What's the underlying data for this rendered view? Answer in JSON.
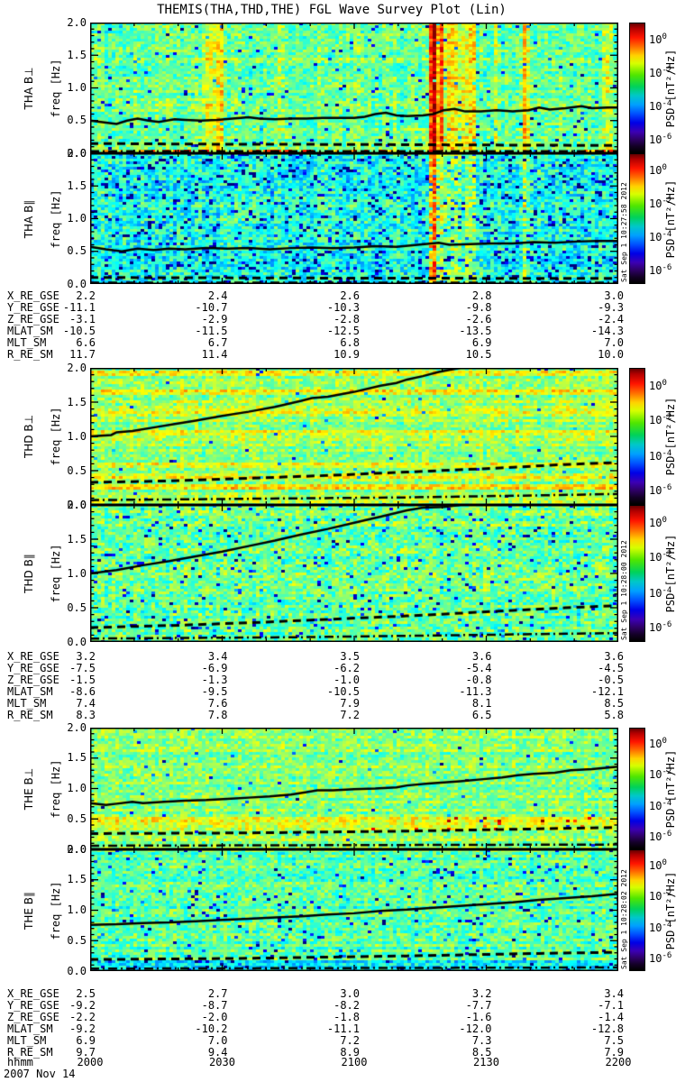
{
  "title": "THEMIS(THA,THD,THE) FGL Wave Survey Plot (Lin)",
  "date_label": "2007 Nov 14",
  "time_axis": {
    "label": "hhmm",
    "ticks": [
      "2000",
      "2030",
      "2100",
      "2130",
      "2200"
    ]
  },
  "colorbar": {
    "label": "PSD [nT²/Hz]",
    "tick_exponents": [
      "0",
      "-2",
      "-4",
      "-6"
    ]
  },
  "chart_data": {
    "type": "heatmap",
    "x_range_hhmm": [
      2000,
      2200
    ],
    "y_range_hz": [
      0.0,
      2.0
    ],
    "ytick_labels": [
      "0.0",
      "0.5",
      "1.0",
      "1.5",
      "2.0"
    ],
    "freq_axis_label": "freq [Hz]",
    "ephemeris_labels": [
      "X_RE_GSE",
      "Y_RE_GSE",
      "Z_RE_GSE",
      "MLAT_SM",
      "MLT_SM",
      "R_RE_SM"
    ],
    "pairs": [
      {
        "probe": "THA",
        "timestamp": "Sat Sep 1 10:27:58 2012",
        "ephemeris": [
          [
            "2.2",
            "2.4",
            "2.6",
            "2.8",
            "3.0"
          ],
          [
            "-11.1",
            "-10.7",
            "-10.3",
            "-9.8",
            "-9.3"
          ],
          [
            "-3.1",
            "-2.9",
            "-2.8",
            "-2.6",
            "-2.4"
          ],
          [
            "-10.5",
            "-11.5",
            "-12.5",
            "-13.5",
            "-14.3"
          ],
          [
            "6.6",
            "6.7",
            "6.8",
            "6.9",
            "7.0"
          ],
          [
            "11.7",
            "11.4",
            "10.9",
            "10.5",
            "10.0"
          ]
        ]
      },
      {
        "probe": "THD",
        "timestamp": "Sat Sep 1 10:28:00 2012",
        "ephemeris": [
          [
            "3.2",
            "3.4",
            "3.5",
            "3.6",
            "3.6"
          ],
          [
            "-7.5",
            "-6.9",
            "-6.2",
            "-5.4",
            "-4.5"
          ],
          [
            "-1.5",
            "-1.3",
            "-1.0",
            "-0.8",
            "-0.5"
          ],
          [
            "-8.6",
            "-9.5",
            "-10.5",
            "-11.3",
            "-12.1"
          ],
          [
            "7.4",
            "7.6",
            "7.9",
            "8.1",
            "8.5"
          ],
          [
            "8.3",
            "7.8",
            "7.2",
            "6.5",
            "5.8"
          ]
        ]
      },
      {
        "probe": "THE",
        "timestamp": "Sat Sep 1 10:28:02 2012",
        "ephemeris": [
          [
            "2.5",
            "2.7",
            "3.0",
            "3.2",
            "3.4"
          ],
          [
            "-9.2",
            "-8.7",
            "-8.2",
            "-7.7",
            "-7.1"
          ],
          [
            "-2.2",
            "-2.0",
            "-1.8",
            "-1.6",
            "-1.4"
          ],
          [
            "-9.2",
            "-10.2",
            "-11.1",
            "-12.0",
            "-12.8"
          ],
          [
            "6.9",
            "7.0",
            "7.2",
            "7.3",
            "7.5"
          ],
          [
            "9.7",
            "9.4",
            "8.9",
            "8.5",
            "7.9"
          ]
        ]
      }
    ],
    "panels": [
      {
        "id": "tha-bperp",
        "label": "THA B⊥",
        "solid_line": [
          [
            0,
            0.5
          ],
          [
            0.03,
            0.47
          ],
          [
            0.05,
            0.45
          ],
          [
            0.07,
            0.5
          ],
          [
            0.09,
            0.53
          ],
          [
            0.11,
            0.5
          ],
          [
            0.13,
            0.48
          ],
          [
            0.16,
            0.52
          ],
          [
            0.18,
            0.51
          ],
          [
            0.21,
            0.5
          ],
          [
            0.24,
            0.51
          ],
          [
            0.27,
            0.53
          ],
          [
            0.3,
            0.55
          ],
          [
            0.32,
            0.53
          ],
          [
            0.35,
            0.52
          ],
          [
            0.38,
            0.53
          ],
          [
            0.41,
            0.53
          ],
          [
            0.44,
            0.54
          ],
          [
            0.47,
            0.54
          ],
          [
            0.5,
            0.54
          ],
          [
            0.52,
            0.56
          ],
          [
            0.54,
            0.6
          ],
          [
            0.56,
            0.62
          ],
          [
            0.58,
            0.58
          ],
          [
            0.6,
            0.57
          ],
          [
            0.63,
            0.58
          ],
          [
            0.65,
            0.6
          ],
          [
            0.67,
            0.66
          ],
          [
            0.69,
            0.68
          ],
          [
            0.71,
            0.64
          ],
          [
            0.74,
            0.64
          ],
          [
            0.77,
            0.66
          ],
          [
            0.8,
            0.64
          ],
          [
            0.83,
            0.66
          ],
          [
            0.85,
            0.7
          ],
          [
            0.87,
            0.67
          ],
          [
            0.9,
            0.69
          ],
          [
            0.93,
            0.72
          ],
          [
            0.95,
            0.69
          ],
          [
            0.98,
            0.7
          ],
          [
            1,
            0.7
          ]
        ],
        "dashed_line": [
          [
            0,
            0.15
          ],
          [
            0.2,
            0.14
          ],
          [
            0.5,
            0.135
          ],
          [
            0.8,
            0.125
          ],
          [
            1,
            0.12
          ]
        ],
        "dashdot_line": [
          [
            0,
            0.03
          ],
          [
            1,
            0.03
          ]
        ],
        "texture": {
          "base": 0.48,
          "noise": 0.1,
          "colNoise": 0.03,
          "rowNoise": 0.035,
          "blueSpeck": 0.03,
          "stripes": [
            [
              0.225,
              0.012,
              0.15
            ],
            [
              0.247,
              0.008,
              0.2
            ],
            [
              0.36,
              0.006,
              0.08
            ],
            [
              0.648,
              0.008,
              0.52
            ],
            [
              0.66,
              0.006,
              0.3
            ],
            [
              0.685,
              0.022,
              0.17
            ],
            [
              0.72,
              0.01,
              0.2
            ],
            [
              0.765,
              0.006,
              0.12
            ],
            [
              0.82,
              0.007,
              0.22
            ],
            [
              0.975,
              0.008,
              0.1
            ]
          ],
          "bottomHot": true
        }
      },
      {
        "id": "tha-bpar",
        "label": "THA B∥",
        "solid_line": [
          [
            0,
            0.57
          ],
          [
            0.03,
            0.53
          ],
          [
            0.06,
            0.5
          ],
          [
            0.09,
            0.54
          ],
          [
            0.12,
            0.52
          ],
          [
            0.15,
            0.54
          ],
          [
            0.18,
            0.53
          ],
          [
            0.22,
            0.55
          ],
          [
            0.26,
            0.54
          ],
          [
            0.3,
            0.55
          ],
          [
            0.34,
            0.53
          ],
          [
            0.38,
            0.55
          ],
          [
            0.42,
            0.56
          ],
          [
            0.46,
            0.55
          ],
          [
            0.5,
            0.56
          ],
          [
            0.54,
            0.58
          ],
          [
            0.58,
            0.57
          ],
          [
            0.62,
            0.6
          ],
          [
            0.66,
            0.63
          ],
          [
            0.68,
            0.6
          ],
          [
            0.72,
            0.61
          ],
          [
            0.76,
            0.62
          ],
          [
            0.8,
            0.62
          ],
          [
            0.84,
            0.64
          ],
          [
            0.88,
            0.63
          ],
          [
            0.92,
            0.65
          ],
          [
            0.96,
            0.66
          ],
          [
            1,
            0.66
          ]
        ],
        "dashed_line": [
          [
            0,
            0.1
          ],
          [
            0.5,
            0.09
          ],
          [
            1,
            0.085
          ]
        ],
        "dashdot_line": [
          [
            0,
            0.02
          ],
          [
            1,
            0.02
          ]
        ],
        "texture": {
          "base": 0.4,
          "noise": 0.12,
          "colNoise": 0.03,
          "rowNoise": 0.03,
          "blueSpeck": 0.1,
          "stripes": [
            [
              0.648,
              0.008,
              0.45
            ],
            [
              0.66,
              0.006,
              0.25
            ],
            [
              0.685,
              0.02,
              0.12
            ],
            [
              0.72,
              0.01,
              0.18
            ],
            [
              0.82,
              0.007,
              0.15
            ]
          ]
        }
      },
      {
        "id": "thd-bperp",
        "label": "THD B⊥",
        "solid_line": [
          [
            0,
            1.0
          ],
          [
            0.04,
            1.02
          ],
          [
            0.05,
            1.06
          ],
          [
            0.08,
            1.08
          ],
          [
            0.12,
            1.13
          ],
          [
            0.16,
            1.18
          ],
          [
            0.2,
            1.23
          ],
          [
            0.25,
            1.3
          ],
          [
            0.3,
            1.36
          ],
          [
            0.35,
            1.43
          ],
          [
            0.4,
            1.52
          ],
          [
            0.42,
            1.56
          ],
          [
            0.45,
            1.58
          ],
          [
            0.5,
            1.65
          ],
          [
            0.55,
            1.74
          ],
          [
            0.58,
            1.78
          ],
          [
            0.6,
            1.83
          ],
          [
            0.63,
            1.88
          ],
          [
            0.66,
            1.94
          ],
          [
            0.7,
            2.0
          ]
        ],
        "dashed_line": [
          [
            0,
            0.33
          ],
          [
            0.15,
            0.35
          ],
          [
            0.3,
            0.39
          ],
          [
            0.45,
            0.43
          ],
          [
            0.6,
            0.48
          ],
          [
            0.75,
            0.53
          ],
          [
            0.9,
            0.59
          ],
          [
            1,
            0.62
          ]
        ],
        "dashdot_line": [
          [
            0,
            0.07
          ],
          [
            0.3,
            0.09
          ],
          [
            0.6,
            0.11
          ],
          [
            0.85,
            0.14
          ],
          [
            1,
            0.16
          ]
        ],
        "texture": {
          "base": 0.52,
          "noise": 0.09,
          "colNoise": 0.025,
          "rowNoise": 0.05,
          "blueSpeck": 0.01,
          "yellowRows": [
            0.28,
            0.44,
            0.58,
            1.06,
            1.36,
            1.64,
            1.92
          ]
        }
      },
      {
        "id": "thd-bpar",
        "label": "THD B∥",
        "solid_line": [
          [
            0,
            1.0
          ],
          [
            0.05,
            1.05
          ],
          [
            0.1,
            1.12
          ],
          [
            0.15,
            1.18
          ],
          [
            0.2,
            1.25
          ],
          [
            0.25,
            1.32
          ],
          [
            0.3,
            1.4
          ],
          [
            0.35,
            1.48
          ],
          [
            0.4,
            1.57
          ],
          [
            0.45,
            1.65
          ],
          [
            0.5,
            1.74
          ],
          [
            0.55,
            1.83
          ],
          [
            0.6,
            1.92
          ],
          [
            0.63,
            1.96
          ],
          [
            0.67,
            1.97
          ],
          [
            0.7,
            2.0
          ]
        ],
        "dashed_line": [
          [
            0,
            0.21
          ],
          [
            0.15,
            0.24
          ],
          [
            0.3,
            0.28
          ],
          [
            0.45,
            0.33
          ],
          [
            0.6,
            0.38
          ],
          [
            0.75,
            0.44
          ],
          [
            0.9,
            0.5
          ],
          [
            1,
            0.53
          ]
        ],
        "dashdot_line": [
          [
            0,
            0.05
          ],
          [
            0.4,
            0.07
          ],
          [
            0.7,
            0.1
          ],
          [
            1,
            0.13
          ]
        ],
        "texture": {
          "base": 0.48,
          "noise": 0.11,
          "colNoise": 0.02,
          "rowNoise": 0.04,
          "blueSpeck": 0.05
        }
      },
      {
        "id": "the-bperp",
        "label": "THE B⊥",
        "solid_line": [
          [
            0,
            0.76
          ],
          [
            0.03,
            0.73
          ],
          [
            0.05,
            0.75
          ],
          [
            0.08,
            0.78
          ],
          [
            0.1,
            0.76
          ],
          [
            0.14,
            0.78
          ],
          [
            0.18,
            0.8
          ],
          [
            0.22,
            0.81
          ],
          [
            0.26,
            0.83
          ],
          [
            0.3,
            0.85
          ],
          [
            0.34,
            0.87
          ],
          [
            0.38,
            0.9
          ],
          [
            0.41,
            0.94
          ],
          [
            0.43,
            0.97
          ],
          [
            0.46,
            0.97
          ],
          [
            0.5,
            0.99
          ],
          [
            0.54,
            1.0
          ],
          [
            0.58,
            1.02
          ],
          [
            0.6,
            1.05
          ],
          [
            0.64,
            1.08
          ],
          [
            0.67,
            1.1
          ],
          [
            0.7,
            1.12
          ],
          [
            0.74,
            1.15
          ],
          [
            0.78,
            1.18
          ],
          [
            0.81,
            1.22
          ],
          [
            0.84,
            1.24
          ],
          [
            0.88,
            1.26
          ],
          [
            0.91,
            1.3
          ],
          [
            0.95,
            1.32
          ],
          [
            1,
            1.36
          ]
        ],
        "dashed_line": [
          [
            0,
            0.26
          ],
          [
            0.3,
            0.27
          ],
          [
            0.6,
            0.3
          ],
          [
            0.8,
            0.33
          ],
          [
            1,
            0.36
          ]
        ],
        "dashdot_line": [
          [
            0,
            0.06
          ],
          [
            1,
            0.08
          ]
        ],
        "texture": {
          "base": 0.51,
          "noise": 0.09,
          "colNoise": 0.02,
          "rowNoise": 0.04,
          "blueSpeck": 0.01,
          "band": [
            0.33,
            0.55,
            0.1
          ],
          "orangeSpeck": true
        }
      },
      {
        "id": "the-bpar",
        "label": "THE B∥",
        "solid_line": [
          [
            0,
            0.76
          ],
          [
            0.05,
            0.77
          ],
          [
            0.1,
            0.79
          ],
          [
            0.15,
            0.8
          ],
          [
            0.2,
            0.82
          ],
          [
            0.25,
            0.84
          ],
          [
            0.3,
            0.86
          ],
          [
            0.35,
            0.88
          ],
          [
            0.4,
            0.9
          ],
          [
            0.45,
            0.93
          ],
          [
            0.5,
            0.95
          ],
          [
            0.55,
            0.99
          ],
          [
            0.6,
            1.01
          ],
          [
            0.65,
            1.04
          ],
          [
            0.7,
            1.07
          ],
          [
            0.75,
            1.1
          ],
          [
            0.8,
            1.13
          ],
          [
            0.85,
            1.17
          ],
          [
            0.9,
            1.2
          ],
          [
            0.95,
            1.23
          ],
          [
            1,
            1.27
          ]
        ],
        "dashed_line": [
          [
            0,
            0.19
          ],
          [
            0.3,
            0.21
          ],
          [
            0.6,
            0.25
          ],
          [
            0.85,
            0.29
          ],
          [
            1,
            0.31
          ]
        ],
        "dashdot_line": [
          [
            0,
            0.04
          ],
          [
            1,
            0.06
          ]
        ],
        "texture": {
          "base": 0.47,
          "noise": 0.1,
          "colNoise": 0.02,
          "rowNoise": 0.04,
          "blueSpeck": 0.04,
          "lowBand": [
            0.0,
            0.18,
            -0.1
          ]
        }
      }
    ]
  }
}
